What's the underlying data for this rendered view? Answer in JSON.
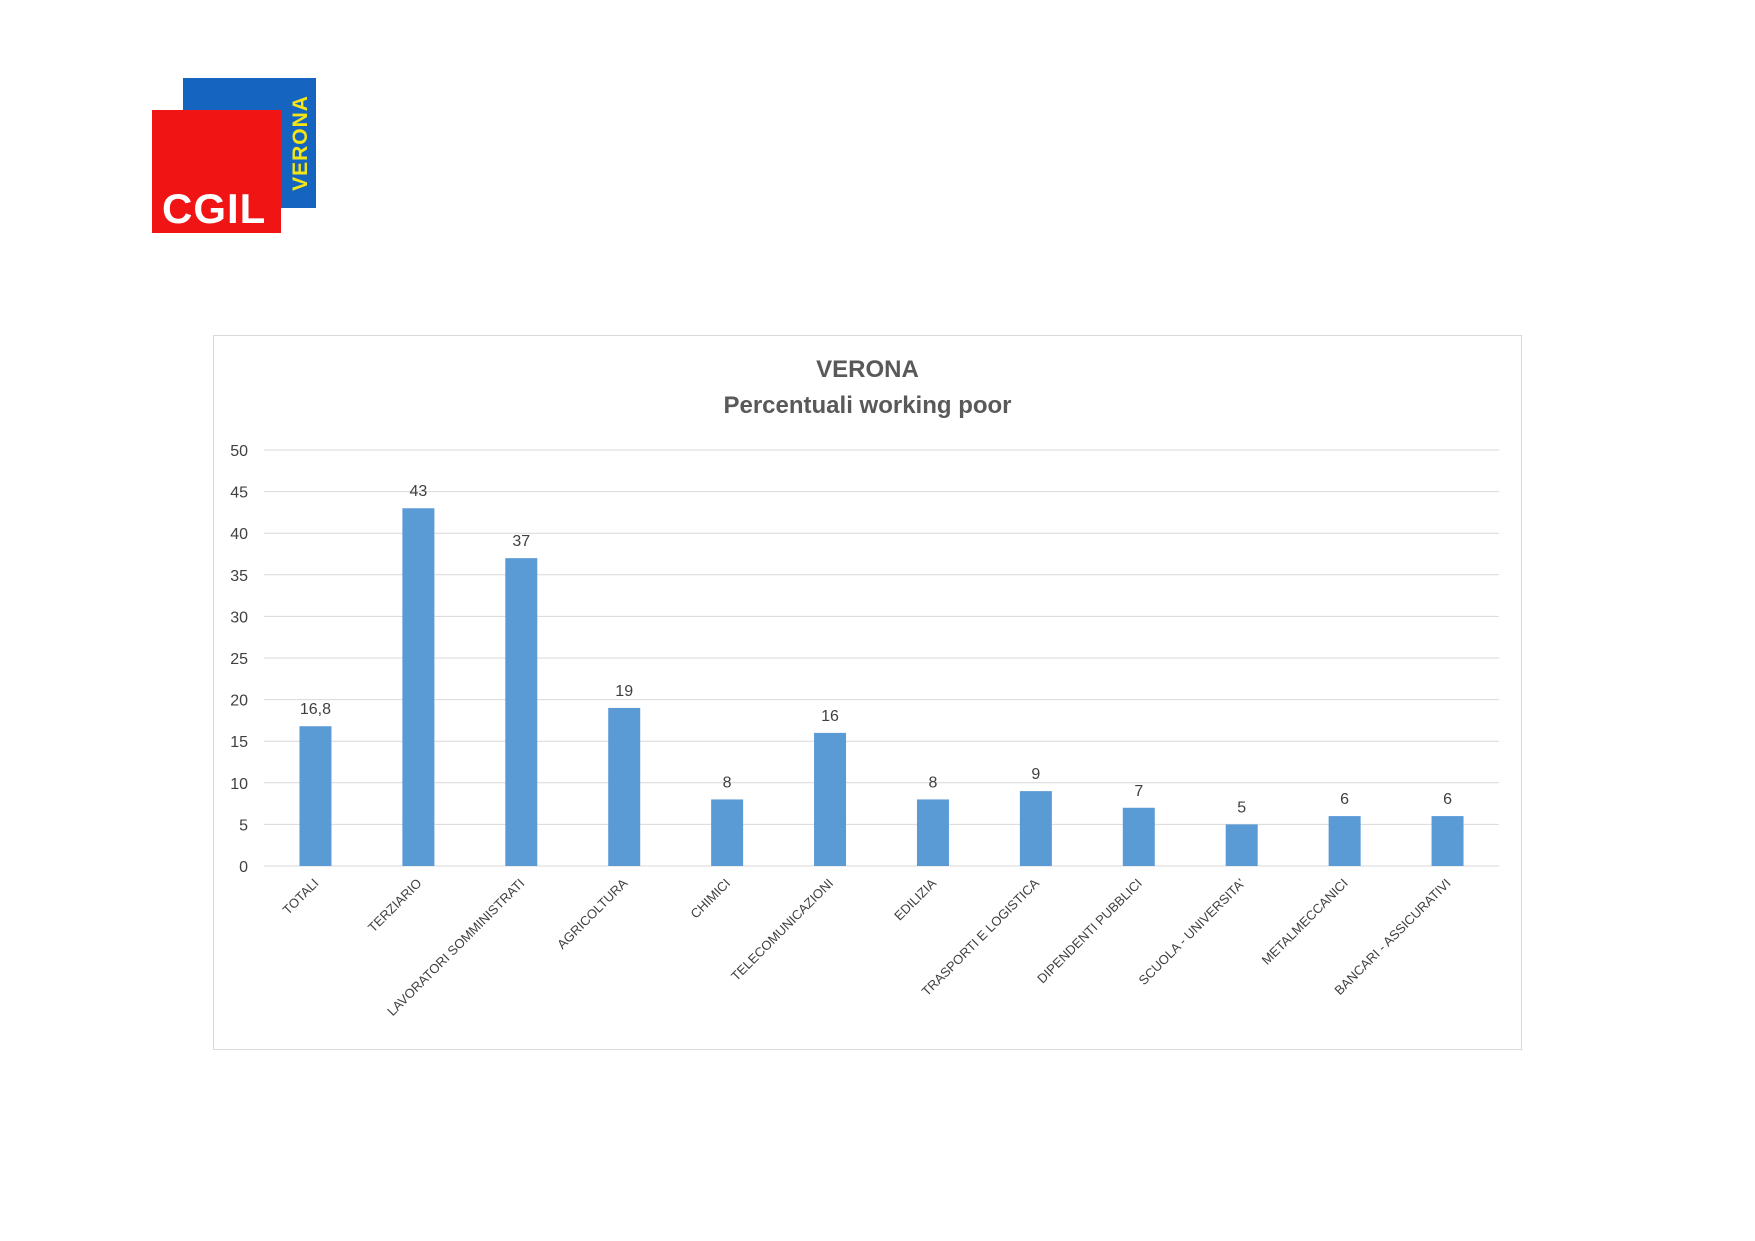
{
  "logo": {
    "brand": "CGIL",
    "city": "VERONA",
    "colors": {
      "red": "#f01414",
      "blue": "#1565c0",
      "yellow": "#f5e613"
    }
  },
  "chart_data": {
    "type": "bar",
    "title": "VERONA",
    "subtitle": "Percentuali working poor",
    "xlabel": "",
    "ylabel": "",
    "categories": [
      "TOTALI",
      "TERZIARIO",
      "LAVORATORI SOMMINISTRATI",
      "AGRICOLTURA",
      "CHIMICI",
      "TELECOMUNICAZIONI",
      "EDILIZIA",
      "TRASPORTI E LOGISTICA",
      "DIPENDENTI PUBBLICI",
      "SCUOLA - UNIVERSITA'",
      "METALMECCANICI",
      "BANCARI - ASSICURATIVI"
    ],
    "values": [
      16.8,
      43,
      37,
      19,
      8,
      16,
      8,
      9,
      7,
      5,
      6,
      6
    ],
    "data_labels": [
      "16,8",
      "43",
      "37",
      "19",
      "8",
      "16",
      "8",
      "9",
      "7",
      "5",
      "6",
      "6"
    ],
    "ylim": [
      0,
      50
    ],
    "yticks": [
      0,
      5,
      10,
      15,
      20,
      25,
      30,
      35,
      40,
      45,
      50
    ],
    "grid": true,
    "legend": "none",
    "bar_color": "#5b9bd5"
  }
}
